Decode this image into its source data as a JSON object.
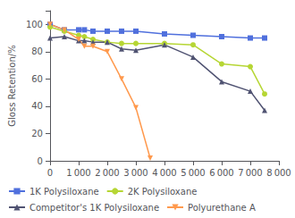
{
  "chart_data": {
    "type": "line",
    "ylabel": "Gloss Retention/%",
    "series": [
      {
        "name": "1K Polysiloxane",
        "marker": "square",
        "x": [
          0,
          500,
          1000,
          1200,
          1500,
          2000,
          2500,
          3000,
          4000,
          5000,
          6000,
          7000,
          7500
        ],
        "values": [
          100,
          96,
          96,
          96,
          95,
          95,
          95,
          95,
          93,
          92,
          91,
          90,
          90
        ]
      },
      {
        "name": "2K Polysiloxane",
        "marker": "circle",
        "x": [
          0,
          500,
          1000,
          1200,
          1500,
          2000,
          2500,
          3000,
          4000,
          5000,
          6000,
          7000,
          7500
        ],
        "values": [
          98,
          95,
          92,
          91,
          89,
          87,
          86,
          86,
          86,
          85,
          71,
          69,
          49
        ]
      },
      {
        "name": "Competitor's 1K Polysiloxane",
        "marker": "triangle_up",
        "x": [
          0,
          500,
          1000,
          1200,
          1500,
          2000,
          2500,
          3000,
          4000,
          5000,
          6000,
          7000,
          7500
        ],
        "values": [
          90,
          91,
          88,
          88,
          87,
          87,
          82,
          81,
          85,
          76,
          58,
          51,
          37
        ]
      },
      {
        "name": "Polyurethane A",
        "marker": "triangle_down",
        "x": [
          0,
          500,
          1000,
          1200,
          1500,
          2000,
          2500,
          3000,
          3500
        ],
        "values": [
          100,
          96,
          89,
          84,
          84,
          80,
          60,
          39,
          2
        ]
      }
    ],
    "xlim": [
      0,
      8000
    ],
    "ylim": [
      0,
      110
    ],
    "xticks": [
      0,
      {
        "value": 1000,
        "label": "1 000"
      },
      {
        "value": 2000,
        "label": "2 000"
      },
      {
        "value": 3000,
        "label": "3 000"
      },
      {
        "value": 4000,
        "label": "4 000"
      },
      {
        "value": 5000,
        "label": "5 000"
      },
      {
        "value": 6000,
        "label": "6 000"
      },
      {
        "value": 7000,
        "label": "7 000"
      },
      {
        "value": 8000,
        "label": "8 000"
      }
    ],
    "yticks": [
      0,
      20,
      40,
      60,
      80,
      100
    ],
    "grid": false,
    "legend": "lower left"
  }
}
